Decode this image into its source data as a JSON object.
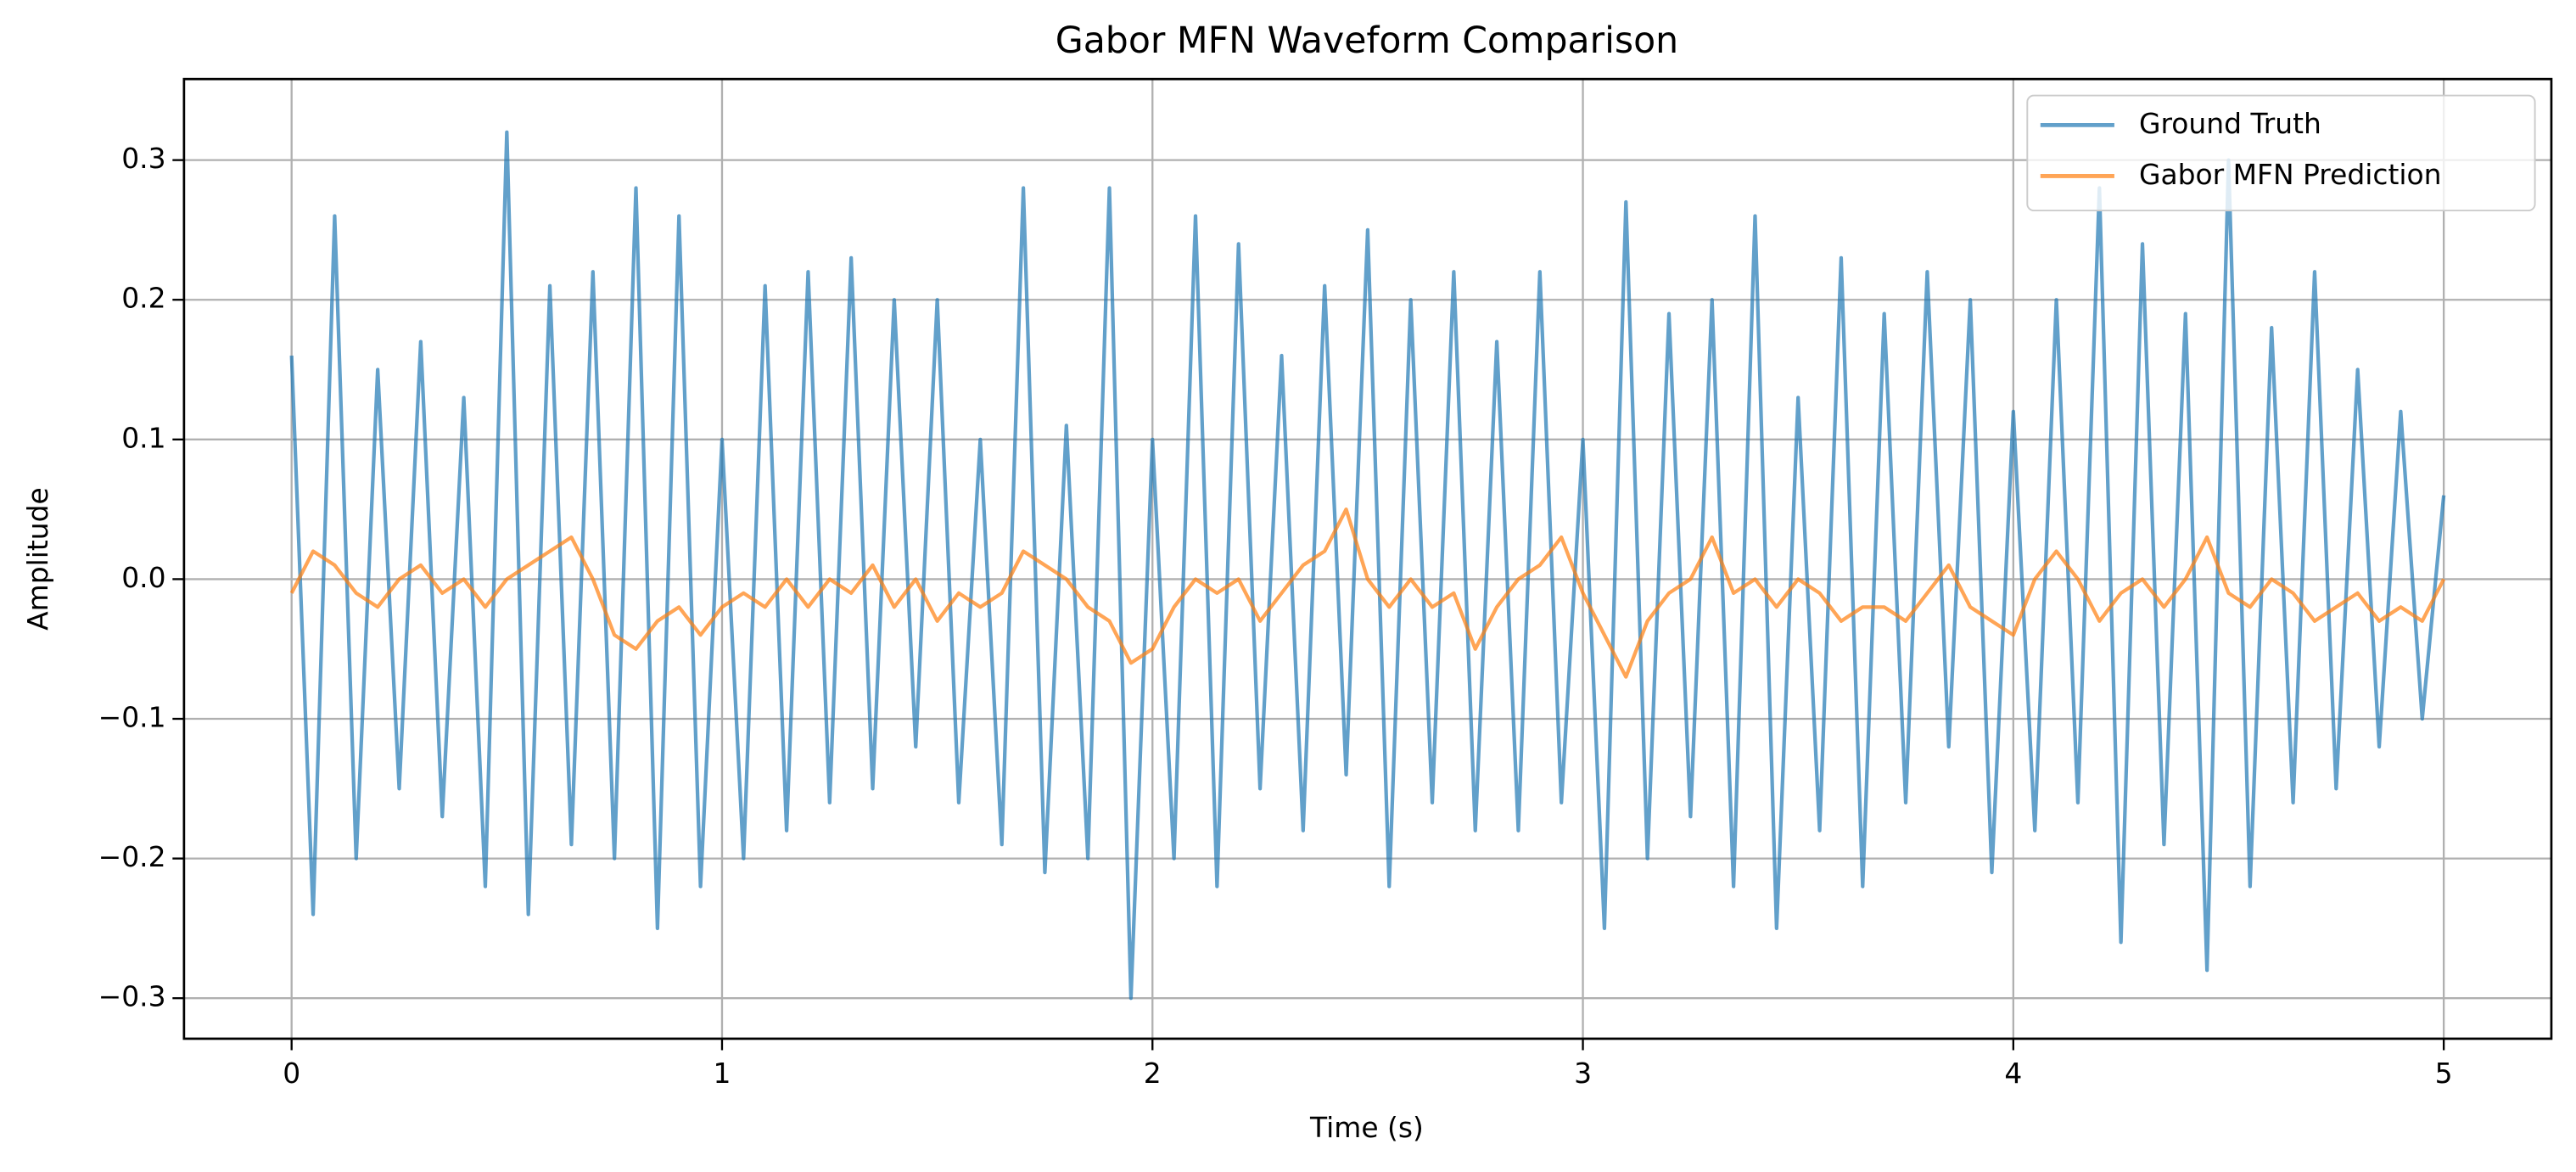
{
  "chart_data": {
    "type": "line",
    "title": "Gabor MFN Waveform Comparison",
    "xlabel": "Time (s)",
    "ylabel": "Amplitude",
    "x": [
      0,
      0.05,
      0.1,
      0.15,
      0.2,
      0.25,
      0.3,
      0.35,
      0.4,
      0.45,
      0.5,
      0.55,
      0.6,
      0.65,
      0.7,
      0.75,
      0.8,
      0.85,
      0.9,
      0.95,
      1.0,
      1.05,
      1.1,
      1.15,
      1.2,
      1.25,
      1.3,
      1.35,
      1.4,
      1.45,
      1.5,
      1.55,
      1.6,
      1.65,
      1.7,
      1.75,
      1.8,
      1.85,
      1.9,
      1.95,
      2.0,
      2.05,
      2.1,
      2.15,
      2.2,
      2.25,
      2.3,
      2.35,
      2.4,
      2.45,
      2.5,
      2.55,
      2.6,
      2.65,
      2.7,
      2.75,
      2.8,
      2.85,
      2.9,
      2.95,
      3.0,
      3.05,
      3.1,
      3.15,
      3.2,
      3.25,
      3.3,
      3.35,
      3.4,
      3.45,
      3.5,
      3.55,
      3.6,
      3.65,
      3.7,
      3.75,
      3.8,
      3.85,
      3.9,
      3.95,
      4.0,
      4.05,
      4.1,
      4.15,
      4.2,
      4.25,
      4.3,
      4.35,
      4.4,
      4.45,
      4.5,
      4.55,
      4.6,
      4.65,
      4.7,
      4.75,
      4.8,
      4.85,
      4.9,
      4.95,
      5.0
    ],
    "series": [
      {
        "name": "Ground Truth",
        "color": "#1f77b4",
        "values": [
          0.16,
          -0.24,
          0.26,
          -0.2,
          0.15,
          -0.15,
          0.17,
          -0.17,
          0.13,
          -0.22,
          0.32,
          -0.24,
          0.21,
          -0.19,
          0.22,
          -0.2,
          0.28,
          -0.25,
          0.26,
          -0.22,
          0.1,
          -0.2,
          0.21,
          -0.18,
          0.22,
          -0.16,
          0.23,
          -0.15,
          0.2,
          -0.12,
          0.2,
          -0.16,
          0.1,
          -0.19,
          0.28,
          -0.21,
          0.11,
          -0.2,
          0.28,
          -0.3,
          0.1,
          -0.2,
          0.26,
          -0.22,
          0.24,
          -0.15,
          0.16,
          -0.18,
          0.21,
          -0.14,
          0.25,
          -0.22,
          0.2,
          -0.16,
          0.22,
          -0.18,
          0.17,
          -0.18,
          0.22,
          -0.16,
          0.1,
          -0.25,
          0.27,
          -0.2,
          0.19,
          -0.17,
          0.2,
          -0.22,
          0.26,
          -0.25,
          0.13,
          -0.18,
          0.23,
          -0.22,
          0.19,
          -0.16,
          0.22,
          -0.12,
          0.2,
          -0.21,
          0.12,
          -0.18,
          0.2,
          -0.16,
          0.28,
          -0.26,
          0.24,
          -0.19,
          0.19,
          -0.28,
          0.3,
          -0.22,
          0.18,
          -0.16,
          0.22,
          -0.15,
          0.15,
          -0.12,
          0.12,
          -0.1,
          0.06
        ]
      },
      {
        "name": "Gabor MFN Prediction",
        "color": "#ff7f0e",
        "values": [
          -0.01,
          0.02,
          0.01,
          -0.01,
          -0.02,
          0.0,
          0.01,
          -0.01,
          0.0,
          -0.02,
          0,
          0.01,
          0.02,
          0.03,
          0,
          -0.04,
          -0.05,
          -0.03,
          -0.02,
          -0.04,
          -0.02,
          -0.01,
          -0.02,
          0,
          -0.02,
          0,
          -0.01,
          0.01,
          -0.02,
          0,
          -0.03,
          -0.01,
          -0.02,
          -0.01,
          0.02,
          0.01,
          0,
          -0.02,
          -0.03,
          -0.06,
          -0.05,
          -0.02,
          0,
          -0.01,
          0,
          -0.03,
          -0.01,
          0.01,
          0.02,
          0.05,
          0,
          -0.02,
          0,
          -0.02,
          -0.01,
          -0.05,
          -0.02,
          0,
          0.01,
          0.03,
          -0.01,
          -0.04,
          -0.07,
          -0.03,
          -0.01,
          0,
          0.03,
          -0.01,
          0,
          -0.02,
          0,
          -0.01,
          -0.03,
          -0.02,
          -0.02,
          -0.03,
          -0.01,
          0.01,
          -0.02,
          -0.03,
          -0.04,
          0,
          0.02,
          0,
          -0.03,
          -0.01,
          0,
          -0.02,
          0,
          0.03,
          -0.01,
          -0.02,
          0,
          -0.01,
          -0.03,
          -0.02,
          -0.01,
          -0.03,
          -0.02,
          -0.03,
          0
        ]
      }
    ],
    "xlim": [
      -0.25,
      5.25
    ],
    "ylim": [
      -0.329,
      0.358
    ],
    "xticks": [
      0,
      1,
      2,
      3,
      4,
      5
    ],
    "yticks": [
      {
        "value": -0.3,
        "label": "−0.3"
      },
      {
        "value": -0.2,
        "label": "−0.2"
      },
      {
        "value": -0.1,
        "label": "−0.1"
      },
      {
        "value": 0,
        "label": "0.0"
      },
      0.1,
      0.2,
      0.3
    ],
    "grid": true,
    "legend": "upper right"
  }
}
